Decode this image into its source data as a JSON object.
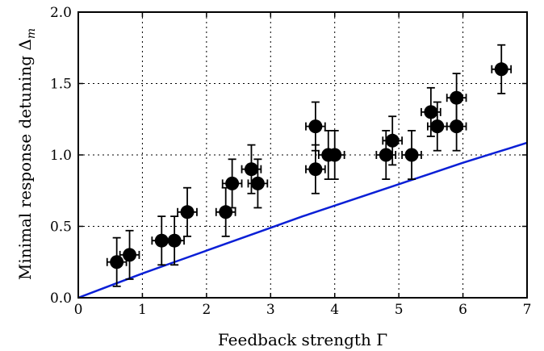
{
  "chart_data": {
    "type": "scatter",
    "xlabel": "Feedback strength Γ",
    "ylabel": "Minimal response detuning Δ",
    "ylabel_subscript": "m",
    "xlim": [
      0,
      7
    ],
    "ylim": [
      0.0,
      2.0
    ],
    "x_ticks": [
      "0",
      "1",
      "2",
      "3",
      "4",
      "5",
      "6",
      "7"
    ],
    "y_ticks": [
      "0.0",
      "0.5",
      "1.0",
      "1.5",
      "2.0"
    ],
    "grid": true,
    "colors": {
      "fit_line": "#0a1fd6",
      "confidence_band": "#add8e6",
      "points": "#000000"
    },
    "fit_line": {
      "x": [
        0,
        0.5,
        1,
        1.5,
        2,
        2.5,
        3,
        3.5,
        4,
        4.5,
        5,
        5.5,
        6,
        6.5,
        7
      ],
      "y": [
        0.0,
        0.085,
        0.17,
        0.25,
        0.33,
        0.41,
        0.49,
        0.57,
        0.645,
        0.72,
        0.795,
        0.87,
        0.945,
        1.015,
        1.085
      ]
    },
    "band": {
      "x": [
        0,
        0.5,
        1,
        1.5,
        2,
        2.5,
        3,
        3.5,
        4,
        4.5,
        5,
        5.5,
        6,
        6.5,
        7
      ],
      "lower": [
        0.0,
        0.085,
        0.17,
        0.25,
        0.33,
        0.41,
        0.49,
        0.57,
        0.645,
        0.72,
        0.795,
        0.87,
        0.945,
        1.015,
        1.085
      ],
      "upper": [
        0.0,
        0.085,
        0.17,
        0.25,
        0.33,
        0.41,
        0.49,
        0.57,
        0.645,
        0.72,
        0.795,
        0.87,
        0.945,
        1.015,
        1.085
      ]
    },
    "points": [
      {
        "x": 0.6,
        "y": 0.25,
        "xerr": 0.15,
        "yerr": 0.17
      },
      {
        "x": 0.8,
        "y": 0.3,
        "xerr": 0.15,
        "yerr": 0.17
      },
      {
        "x": 1.3,
        "y": 0.4,
        "xerr": 0.15,
        "yerr": 0.17
      },
      {
        "x": 1.5,
        "y": 0.4,
        "xerr": 0.15,
        "yerr": 0.17
      },
      {
        "x": 1.7,
        "y": 0.6,
        "xerr": 0.15,
        "yerr": 0.17
      },
      {
        "x": 2.3,
        "y": 0.6,
        "xerr": 0.15,
        "yerr": 0.17
      },
      {
        "x": 2.4,
        "y": 0.8,
        "xerr": 0.15,
        "yerr": 0.17
      },
      {
        "x": 2.7,
        "y": 0.9,
        "xerr": 0.15,
        "yerr": 0.17
      },
      {
        "x": 2.8,
        "y": 0.8,
        "xerr": 0.15,
        "yerr": 0.17
      },
      {
        "x": 3.7,
        "y": 1.2,
        "xerr": 0.15,
        "yerr": 0.17
      },
      {
        "x": 3.7,
        "y": 0.9,
        "xerr": 0.15,
        "yerr": 0.17
      },
      {
        "x": 3.9,
        "y": 1.0,
        "xerr": 0.15,
        "yerr": 0.17
      },
      {
        "x": 4.0,
        "y": 1.0,
        "xerr": 0.15,
        "yerr": 0.17
      },
      {
        "x": 4.8,
        "y": 1.0,
        "xerr": 0.15,
        "yerr": 0.17
      },
      {
        "x": 4.9,
        "y": 1.1,
        "xerr": 0.15,
        "yerr": 0.17
      },
      {
        "x": 5.2,
        "y": 1.0,
        "xerr": 0.15,
        "yerr": 0.17
      },
      {
        "x": 5.5,
        "y": 1.3,
        "xerr": 0.15,
        "yerr": 0.17
      },
      {
        "x": 5.6,
        "y": 1.2,
        "xerr": 0.15,
        "yerr": 0.17
      },
      {
        "x": 5.9,
        "y": 1.4,
        "xerr": 0.15,
        "yerr": 0.17
      },
      {
        "x": 5.9,
        "y": 1.2,
        "xerr": 0.15,
        "yerr": 0.17
      },
      {
        "x": 6.6,
        "y": 1.6,
        "xerr": 0.15,
        "yerr": 0.17
      }
    ]
  }
}
